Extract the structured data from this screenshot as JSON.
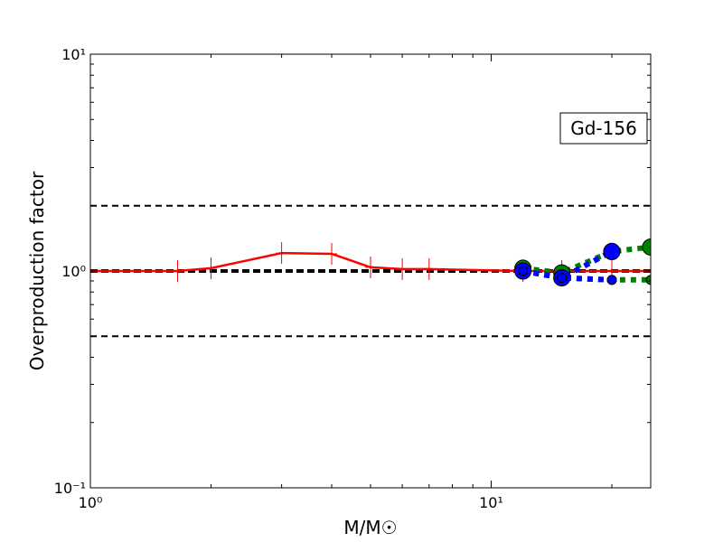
{
  "chart_data": {
    "type": "line",
    "title": "",
    "xlabel": "M/M☉",
    "ylabel": "Overproduction factor",
    "xscale": "log",
    "yscale": "log",
    "xlim": [
      1,
      25
    ],
    "ylim": [
      0.1,
      10
    ],
    "x_ticks": [
      {
        "value": 1,
        "label": "10⁰"
      },
      {
        "value": 10,
        "label": "10¹"
      }
    ],
    "y_ticks": [
      {
        "value": 0.1,
        "label": "10⁻¹"
      },
      {
        "value": 1,
        "label": "10⁰"
      },
      {
        "value": 10,
        "label": "10¹"
      }
    ],
    "grid": false,
    "legend": "none",
    "annotation": {
      "text": "Gd-156",
      "position": "upper-right"
    },
    "reference_lines": [
      {
        "y": 2,
        "style": "dashed",
        "color": "#000000"
      },
      {
        "y": 1,
        "style": "dashed-bold",
        "color": "#000000"
      },
      {
        "y": 0.5,
        "style": "dashed",
        "color": "#000000"
      }
    ],
    "series": [
      {
        "color": "#ff0000",
        "line_style": "solid",
        "marker": "plus",
        "x": [
          1,
          1.65,
          2,
          3,
          4,
          5,
          6,
          7,
          12,
          15,
          20,
          25
        ],
        "y": [
          1.0,
          1.0,
          1.03,
          1.21,
          1.2,
          1.04,
          1.02,
          1.02,
          1.0,
          1.0,
          1.0,
          1.0
        ]
      },
      {
        "color": "#008000",
        "line_style": "dotted",
        "marker": "circle",
        "x": [
          12,
          15,
          20,
          25
        ],
        "y": [
          1.03,
          0.98,
          1.23,
          1.29
        ]
      },
      {
        "color": "#008000",
        "line_style": "dotted",
        "marker": "circle-small",
        "x": [
          12,
          15,
          20,
          25
        ],
        "y": [
          1.0,
          0.93,
          0.91,
          0.91
        ]
      },
      {
        "color": "#0000ff",
        "line_style": "dotted",
        "marker": "circle",
        "x": [
          12,
          15,
          20
        ],
        "y": [
          1.0,
          0.93,
          1.23
        ]
      },
      {
        "color": "#0000ff",
        "line_style": "dotted",
        "marker": "circle-small",
        "x": [
          12,
          15,
          20
        ],
        "y": [
          1.0,
          0.93,
          0.91
        ]
      }
    ]
  }
}
